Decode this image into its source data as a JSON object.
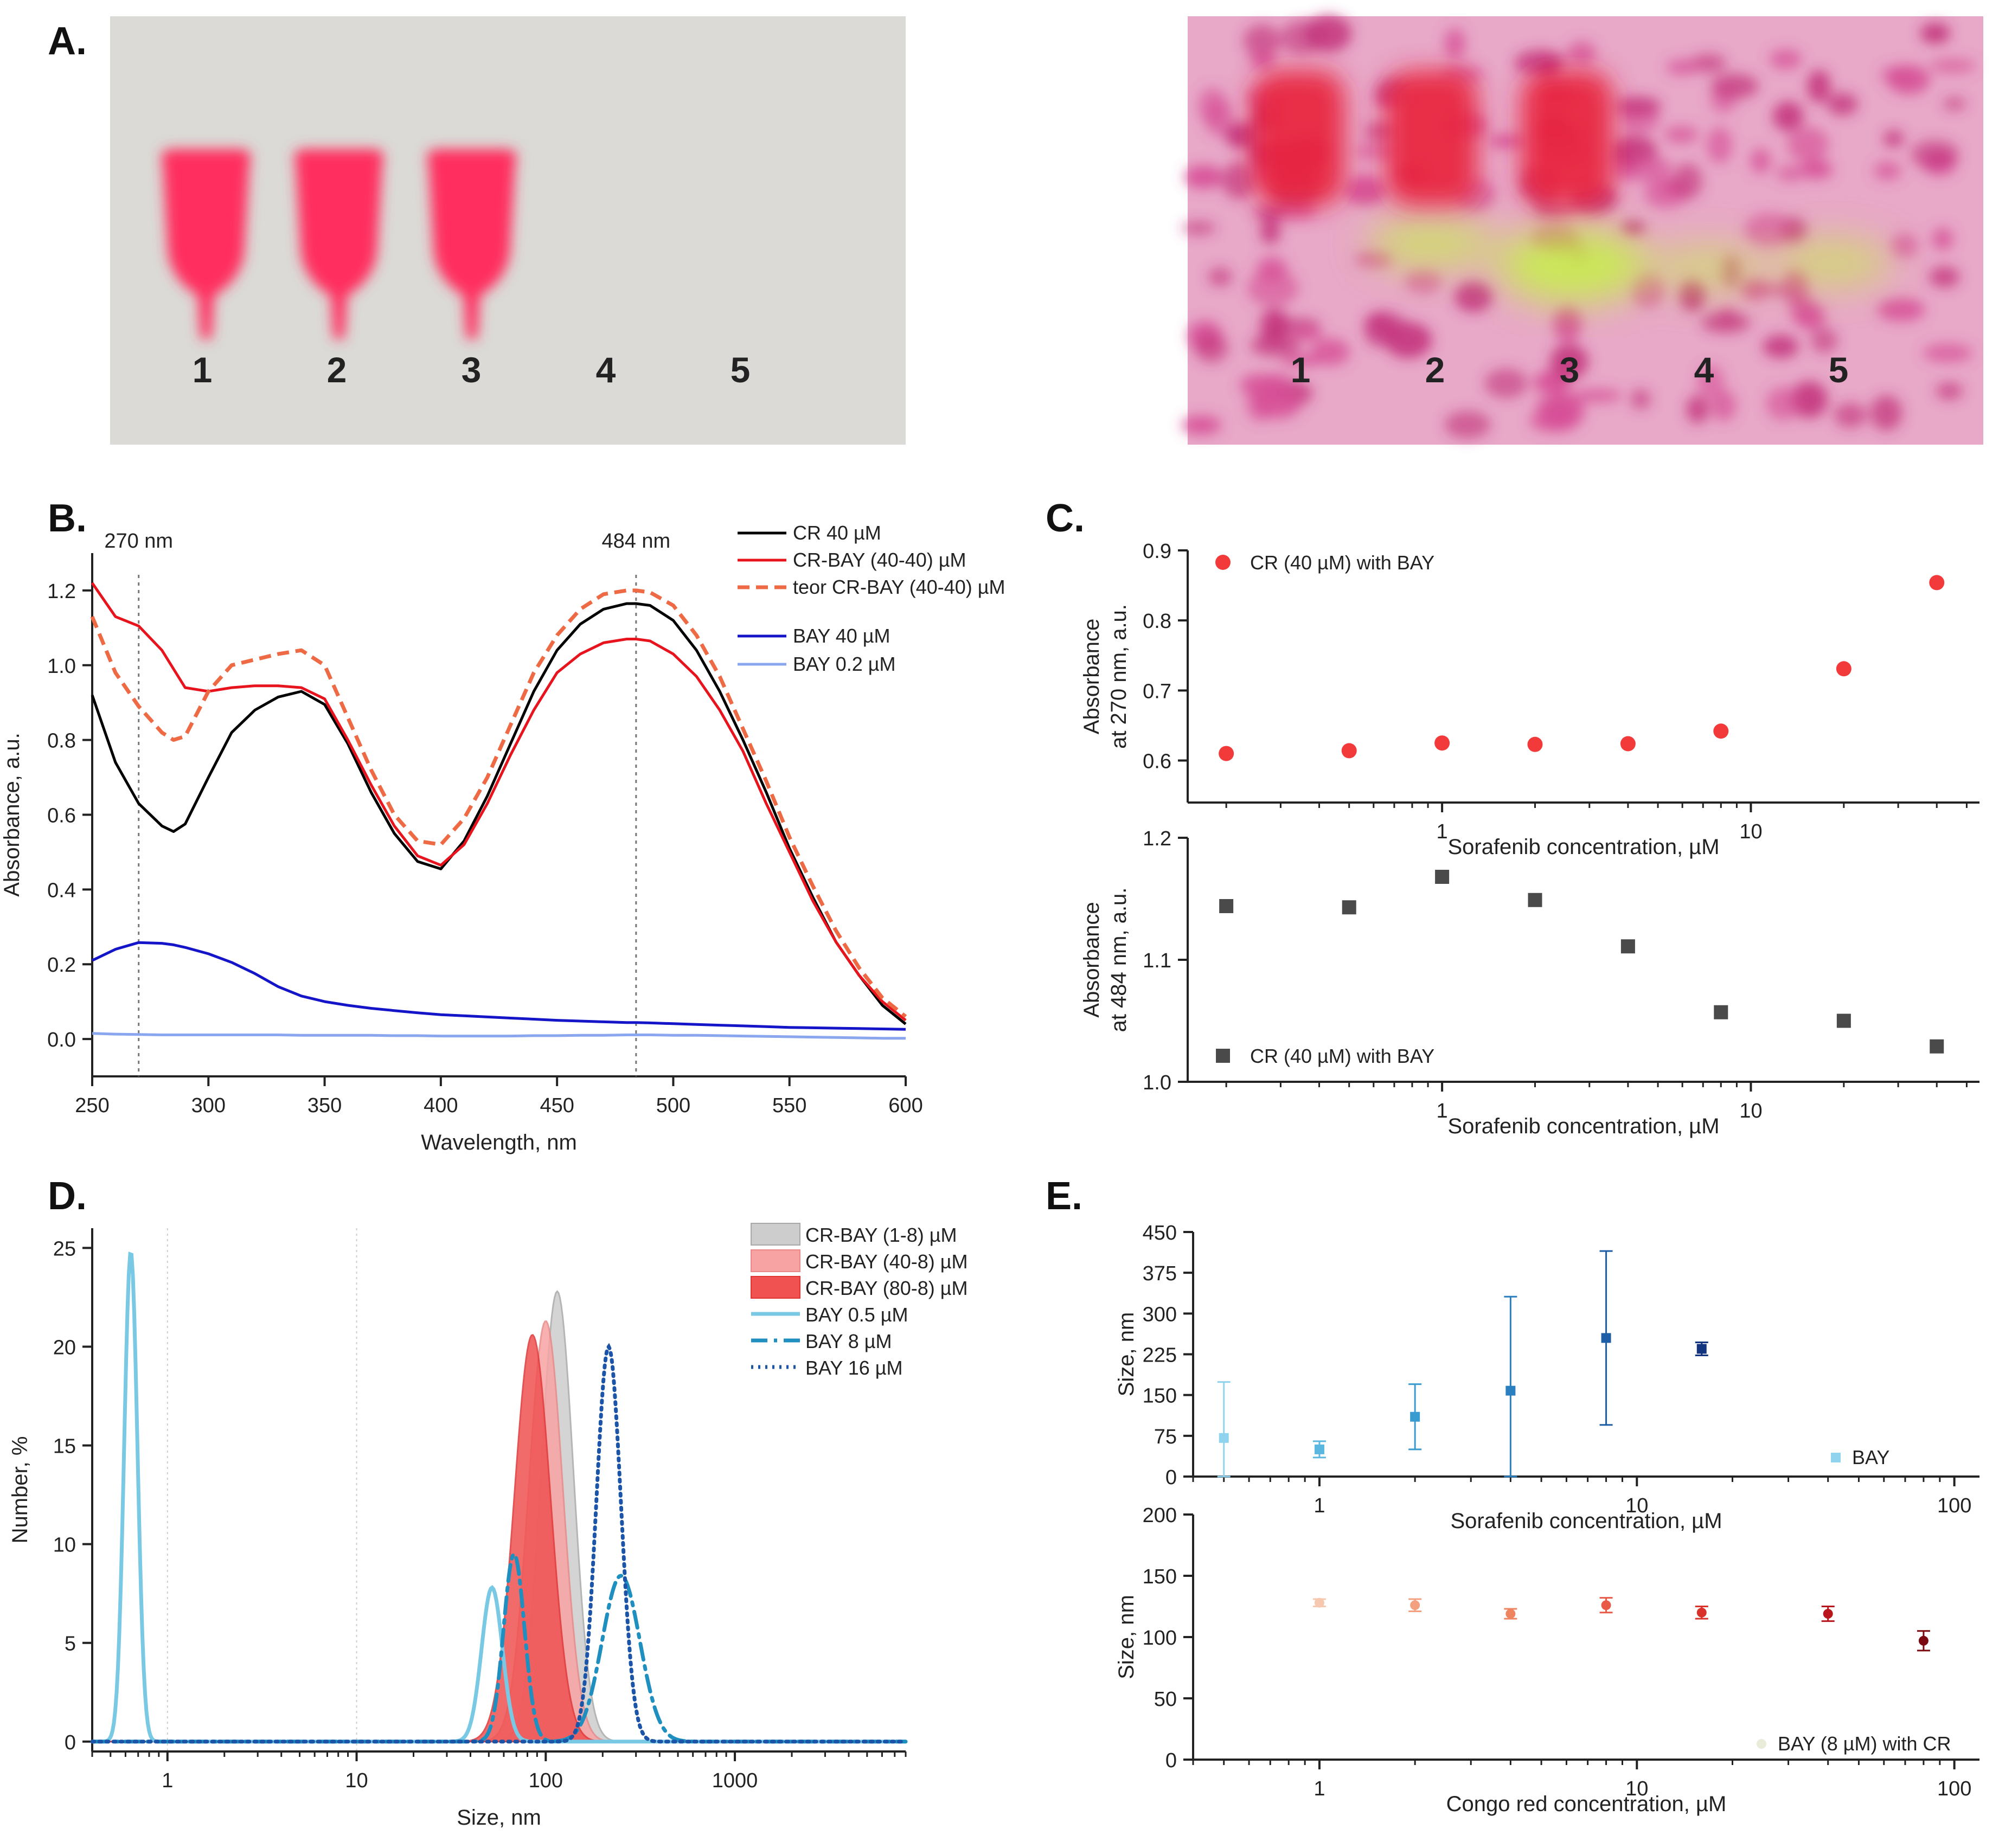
{
  "panels": {
    "A": {
      "label": "A.",
      "left_photo": {
        "lanes": [
          "1",
          "2",
          "3",
          "4",
          "5"
        ],
        "spot_color": "#ff2f5e",
        "background": "#e2e0dc"
      },
      "right_photo": {
        "lanes": [
          "1",
          "2",
          "3",
          "4",
          "5"
        ],
        "spot_color": "#e8253e",
        "glow_color": "#c6f04a",
        "background": "#e8a8c8"
      }
    },
    "B": {
      "label": "B."
    },
    "C": {
      "label": "C."
    },
    "D": {
      "label": "D."
    },
    "E": {
      "label": "E."
    }
  },
  "chart_data": [
    {
      "id": "B",
      "type": "line",
      "xlabel": "Wavelength, nm",
      "ylabel": "Absorbance, a.u.",
      "xlim": [
        250,
        600
      ],
      "ylim": [
        -0.1,
        1.3
      ],
      "xticks": [
        250,
        300,
        350,
        400,
        450,
        500,
        550,
        600
      ],
      "yticks": [
        0.0,
        0.2,
        0.4,
        0.6,
        0.8,
        1.0,
        1.2
      ],
      "reference_lines": [
        {
          "x": 270,
          "label": "270 nm"
        },
        {
          "x": 484,
          "label": "484 nm"
        }
      ],
      "legend": "top-right",
      "x": [
        250,
        260,
        270,
        280,
        285,
        290,
        300,
        310,
        320,
        330,
        340,
        350,
        360,
        370,
        380,
        390,
        400,
        410,
        420,
        430,
        440,
        450,
        460,
        470,
        480,
        484,
        490,
        500,
        510,
        520,
        530,
        540,
        550,
        560,
        570,
        580,
        590,
        600
      ],
      "series": [
        {
          "name": "CR 40 µM",
          "color": "#000000",
          "dash": "solid",
          "values": [
            0.92,
            0.74,
            0.63,
            0.57,
            0.555,
            0.575,
            0.7,
            0.82,
            0.88,
            0.915,
            0.93,
            0.895,
            0.79,
            0.66,
            0.55,
            0.475,
            0.455,
            0.53,
            0.65,
            0.79,
            0.93,
            1.04,
            1.11,
            1.15,
            1.165,
            1.165,
            1.16,
            1.12,
            1.04,
            0.93,
            0.8,
            0.66,
            0.51,
            0.38,
            0.26,
            0.17,
            0.09,
            0.04
          ]
        },
        {
          "name": "CR-BAY (40-40) µM",
          "color": "#e8141d",
          "dash": "solid",
          "values": [
            1.22,
            1.13,
            1.105,
            1.04,
            0.99,
            0.94,
            0.93,
            0.94,
            0.945,
            0.945,
            0.94,
            0.91,
            0.8,
            0.68,
            0.57,
            0.49,
            0.465,
            0.52,
            0.63,
            0.76,
            0.88,
            0.98,
            1.03,
            1.06,
            1.07,
            1.07,
            1.065,
            1.03,
            0.97,
            0.88,
            0.77,
            0.63,
            0.5,
            0.37,
            0.26,
            0.17,
            0.1,
            0.05
          ]
        },
        {
          "name": "teor CR-BAY (40-40) µM",
          "color": "#ee6a45",
          "dash": "dashed",
          "values": [
            1.13,
            0.98,
            0.89,
            0.82,
            0.8,
            0.81,
            0.93,
            1.0,
            1.015,
            1.03,
            1.04,
            1.0,
            0.86,
            0.72,
            0.6,
            0.53,
            0.52,
            0.59,
            0.7,
            0.84,
            0.98,
            1.08,
            1.15,
            1.19,
            1.2,
            1.2,
            1.195,
            1.16,
            1.08,
            0.97,
            0.83,
            0.69,
            0.54,
            0.41,
            0.29,
            0.19,
            0.11,
            0.06
          ]
        },
        {
          "name": "BAY 40 µM",
          "color": "#1414c8",
          "dash": "solid",
          "values": [
            0.21,
            0.24,
            0.258,
            0.256,
            0.252,
            0.245,
            0.228,
            0.205,
            0.175,
            0.14,
            0.115,
            0.1,
            0.09,
            0.082,
            0.076,
            0.07,
            0.065,
            0.062,
            0.059,
            0.056,
            0.053,
            0.05,
            0.048,
            0.046,
            0.044,
            0.044,
            0.043,
            0.041,
            0.039,
            0.037,
            0.035,
            0.033,
            0.031,
            0.03,
            0.029,
            0.028,
            0.027,
            0.026
          ]
        },
        {
          "name": "BAY 0.2 µM",
          "color": "#8aa6ee",
          "dash": "solid",
          "values": [
            0.015,
            0.013,
            0.012,
            0.011,
            0.011,
            0.011,
            0.011,
            0.011,
            0.011,
            0.011,
            0.01,
            0.01,
            0.01,
            0.01,
            0.009,
            0.009,
            0.008,
            0.008,
            0.008,
            0.008,
            0.009,
            0.009,
            0.01,
            0.01,
            0.011,
            0.011,
            0.011,
            0.01,
            0.01,
            0.009,
            0.008,
            0.007,
            0.006,
            0.005,
            0.004,
            0.003,
            0.002,
            0.002
          ]
        }
      ]
    },
    {
      "id": "C-top",
      "type": "scatter",
      "xscale": "log",
      "xlabel": "Sorafenib concentration, µM",
      "ylabel": "Absorbance\nat 270 nm, a.u.",
      "xlim": [
        0.15,
        55
      ],
      "ylim": [
        0.54,
        0.9
      ],
      "xticks": [
        1,
        10
      ],
      "yticks": [
        0.6,
        0.7,
        0.8,
        0.9
      ],
      "legend": "top-left",
      "series": [
        {
          "name": "CR (40 µM) with BAY",
          "color": "#f23a3a",
          "marker": "circle",
          "x": [
            0.2,
            0.5,
            1,
            2,
            4,
            8,
            20,
            40
          ],
          "y": [
            0.61,
            0.614,
            0.625,
            0.623,
            0.624,
            0.642,
            0.731,
            0.854
          ]
        }
      ]
    },
    {
      "id": "C-bottom",
      "type": "scatter",
      "xscale": "log",
      "xlabel": "Sorafenib concentration, µM",
      "ylabel": "Absorbance\nat 484 nm, a.u.",
      "xlim": [
        0.15,
        55
      ],
      "ylim": [
        1.0,
        1.2
      ],
      "xticks": [
        1,
        10
      ],
      "yticks": [
        1.0,
        1.1,
        1.2
      ],
      "legend": "bottom-left",
      "series": [
        {
          "name": "CR (40 µM) with BAY",
          "color": "#4a4a4a",
          "marker": "square",
          "x": [
            0.2,
            0.5,
            1,
            2,
            4,
            8,
            20,
            40
          ],
          "y": [
            1.144,
            1.143,
            1.168,
            1.149,
            1.111,
            1.057,
            1.05,
            1.029
          ]
        }
      ]
    },
    {
      "id": "D",
      "type": "area",
      "xscale": "log",
      "xlabel": "Size, nm",
      "ylabel": "Number, %",
      "xlim": [
        0.4,
        8000
      ],
      "ylim": [
        -0.5,
        26
      ],
      "xticks": [
        1,
        10,
        100,
        1000
      ],
      "yticks": [
        0,
        5,
        10,
        15,
        20,
        25
      ],
      "legend": "top-right",
      "series": [
        {
          "name": "CR-BAY (1-8) µM",
          "kind": "area",
          "color": "#cdcdcd",
          "stroke": "#a8a8a8",
          "center": 115,
          "width": 0.17,
          "peak": 22.8
        },
        {
          "name": "CR-BAY (40-8) µM",
          "kind": "area",
          "color": "#f7a3a3",
          "stroke": "#e88888",
          "center": 100,
          "width": 0.18,
          "peak": 21.3
        },
        {
          "name": "CR-BAY (80-8) µM",
          "kind": "area",
          "color": "#f05252",
          "stroke": "#e03535",
          "center": 85,
          "width": 0.19,
          "peak": 20.6
        },
        {
          "name": "BAY 0.5 µM",
          "kind": "line",
          "color": "#79c8e4",
          "dash": "solid",
          "peaks": [
            {
              "center": 0.64,
              "width": 0.07,
              "peak": 24.8
            },
            {
              "center": 52,
              "width": 0.11,
              "peak": 7.8
            }
          ]
        },
        {
          "name": "BAY 8 µM",
          "kind": "line",
          "color": "#1f8fc0",
          "dash": "dashdot",
          "peaks": [
            {
              "center": 68,
              "width": 0.11,
              "peak": 9.5
            },
            {
              "center": 250,
              "width": 0.2,
              "peak": 8.4
            }
          ]
        },
        {
          "name": "BAY 16 µM",
          "kind": "line",
          "color": "#1c55a8",
          "dash": "dotted",
          "peaks": [
            {
              "center": 215,
              "width": 0.13,
              "peak": 20.0
            }
          ]
        }
      ]
    },
    {
      "id": "E-top",
      "type": "scatter",
      "xscale": "log",
      "xlabel": "Sorafenib concentration, µM",
      "ylabel": "Size, nm",
      "xlim": [
        0.4,
        120
      ],
      "ylim": [
        0,
        450
      ],
      "xticks": [
        1,
        10,
        100
      ],
      "yticks": [
        0,
        75,
        150,
        225,
        300,
        375,
        450
      ],
      "legend": "bottom-right",
      "series": [
        {
          "name": "BAY",
          "marker": "square",
          "x": [
            0.5,
            1,
            2,
            4,
            8,
            16
          ],
          "y": [
            71,
            50,
            110,
            158,
            255,
            235
          ],
          "err": [
            103,
            15,
            60,
            173,
            160,
            12
          ],
          "colors": [
            "#8fd3ee",
            "#5bb7e0",
            "#3a9bd0",
            "#2a7fbf",
            "#1d5ea6",
            "#13357f"
          ]
        }
      ]
    },
    {
      "id": "E-bottom",
      "type": "scatter",
      "xscale": "log",
      "xlabel": "Congo red concentration, µM",
      "ylabel": "Size, nm",
      "xlim": [
        0.4,
        120
      ],
      "ylim": [
        0,
        200
      ],
      "xticks": [
        1,
        10,
        100
      ],
      "yticks": [
        0,
        50,
        100,
        150,
        200
      ],
      "legend": "bottom-right",
      "series": [
        {
          "name": "BAY (8 µM) with CR",
          "marker": "circle",
          "x": [
            1,
            2,
            4,
            8,
            16,
            40,
            80
          ],
          "y": [
            128,
            126,
            119,
            126,
            120,
            119,
            97
          ],
          "err": [
            3,
            5,
            4,
            6,
            5,
            6,
            8
          ],
          "colors": [
            "#f6c8b0",
            "#f2a080",
            "#ee8560",
            "#e85a45",
            "#d8322b",
            "#b8161c",
            "#7a0a10"
          ]
        }
      ]
    }
  ]
}
